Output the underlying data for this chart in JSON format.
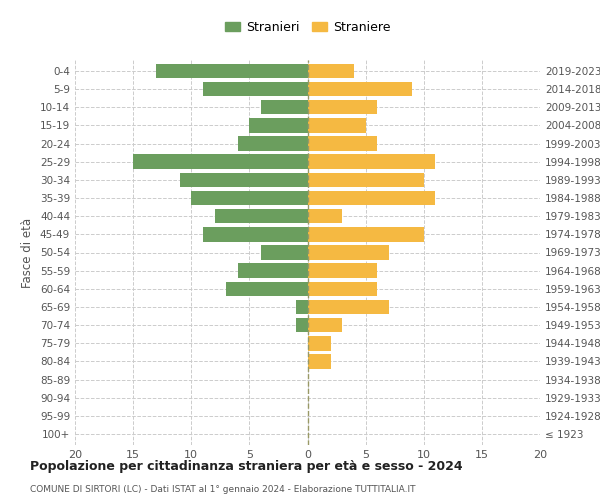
{
  "age_groups": [
    "100+",
    "95-99",
    "90-94",
    "85-89",
    "80-84",
    "75-79",
    "70-74",
    "65-69",
    "60-64",
    "55-59",
    "50-54",
    "45-49",
    "40-44",
    "35-39",
    "30-34",
    "25-29",
    "20-24",
    "15-19",
    "10-14",
    "5-9",
    "0-4"
  ],
  "birth_years": [
    "≤ 1923",
    "1924-1928",
    "1929-1933",
    "1934-1938",
    "1939-1943",
    "1944-1948",
    "1949-1953",
    "1954-1958",
    "1959-1963",
    "1964-1968",
    "1969-1973",
    "1974-1978",
    "1979-1983",
    "1984-1988",
    "1989-1993",
    "1994-1998",
    "1999-2003",
    "2004-2008",
    "2009-2013",
    "2014-2018",
    "2019-2023"
  ],
  "males": [
    0,
    0,
    0,
    0,
    0,
    0,
    1,
    1,
    7,
    6,
    4,
    9,
    8,
    10,
    11,
    15,
    6,
    5,
    4,
    9,
    13
  ],
  "females": [
    0,
    0,
    0,
    0,
    2,
    2,
    3,
    7,
    6,
    6,
    7,
    10,
    3,
    11,
    10,
    11,
    6,
    5,
    6,
    9,
    4
  ],
  "male_color": "#6b9e5e",
  "female_color": "#f5b942",
  "background_color": "#ffffff",
  "grid_color": "#cccccc",
  "title": "Popolazione per cittadinanza straniera per età e sesso - 2024",
  "subtitle": "COMUNE DI SIRTORI (LC) - Dati ISTAT al 1° gennaio 2024 - Elaborazione TUTTITALIA.IT",
  "ylabel_left": "Fasce di età",
  "legend_stranieri": "Stranieri",
  "legend_straniere": "Straniere",
  "xlim": 20,
  "bar_height": 0.8
}
